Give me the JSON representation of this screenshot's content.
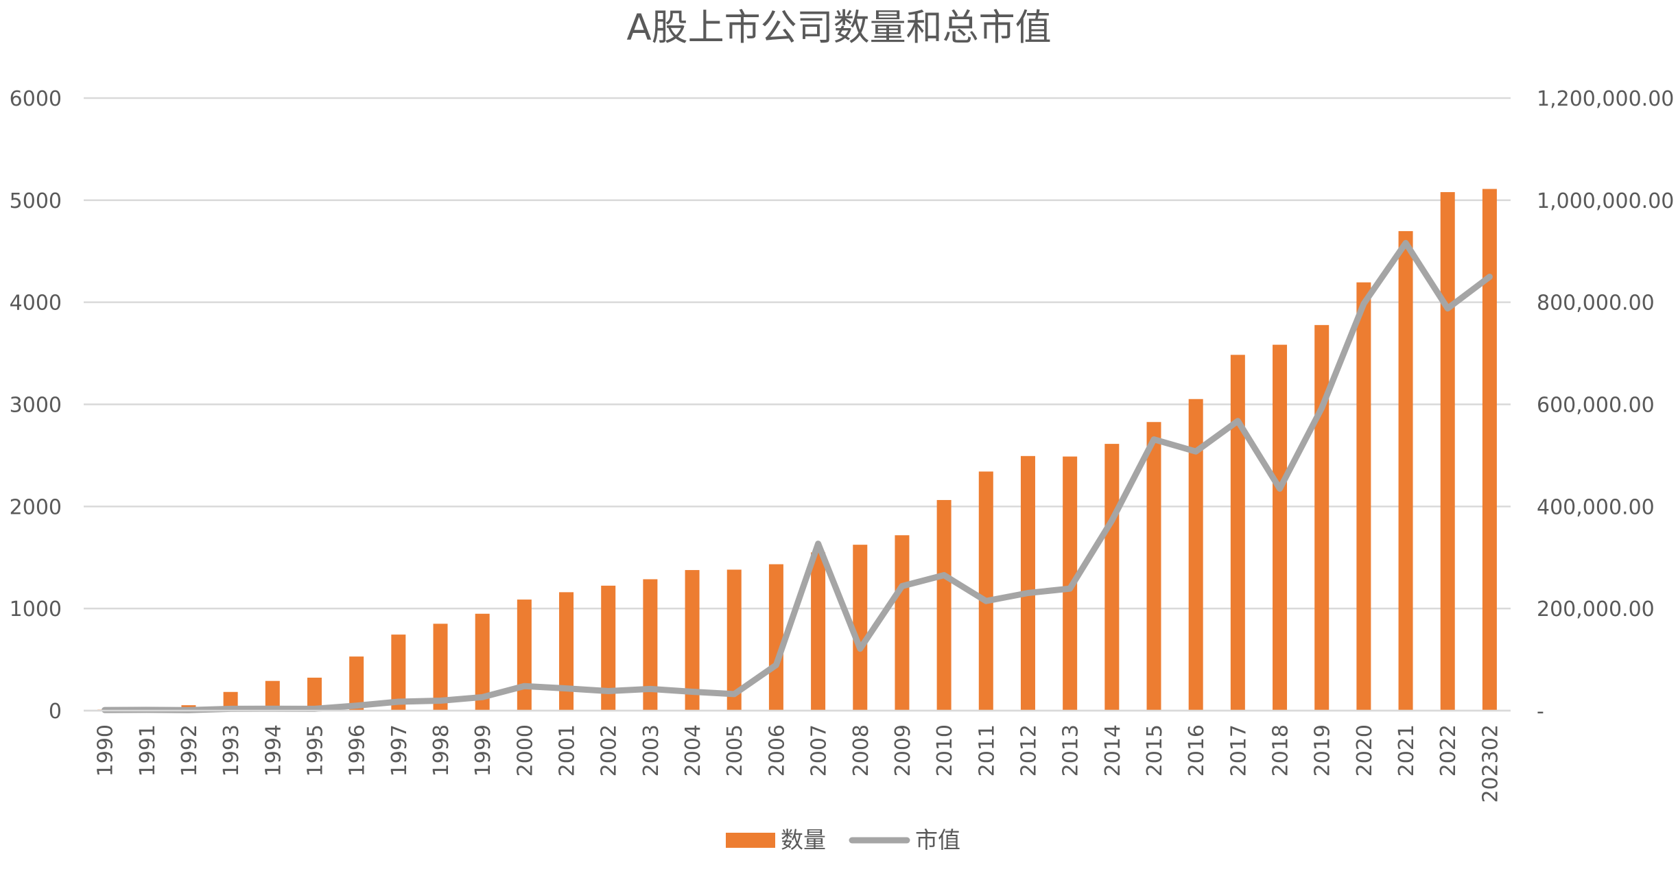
{
  "chart_data": {
    "type": "bar",
    "title": "A股上市公司数量和总市值",
    "categories": [
      "1990",
      "1991",
      "1992",
      "1993",
      "1994",
      "1995",
      "1996",
      "1997",
      "1998",
      "1999",
      "2000",
      "2001",
      "2002",
      "2003",
      "2004",
      "2005",
      "2006",
      "2007",
      "2008",
      "2009",
      "2010",
      "2011",
      "2012",
      "2013",
      "2014",
      "2015",
      "2016",
      "2017",
      "2018",
      "2019",
      "2020",
      "2021",
      "2022",
      "202302"
    ],
    "series": [
      {
        "name": "数量",
        "type": "bar",
        "axis": "left",
        "color": "#ED7D31",
        "values": [
          10,
          14,
          53,
          183,
          291,
          323,
          530,
          745,
          851,
          949,
          1088,
          1160,
          1224,
          1287,
          1377,
          1381,
          1434,
          1550,
          1625,
          1718,
          2063,
          2342,
          2494,
          2489,
          2613,
          2827,
          3052,
          3485,
          3584,
          3777,
          4195,
          4697,
          5079,
          5110
        ]
      },
      {
        "name": "市值",
        "type": "line",
        "axis": "right",
        "color": "#A5A5A5",
        "values": [
          1200,
          1500,
          1000,
          3500,
          3700,
          3500,
          9800,
          17500,
          19500,
          26500,
          48100,
          43500,
          38300,
          42500,
          37000,
          32400,
          89400,
          327100,
          121400,
          243900,
          265400,
          214800,
          230400,
          239100,
          372500,
          531300,
          507700,
          567500,
          434900,
          592900,
          797200,
          916100,
          788000,
          850000
        ]
      }
    ],
    "y_left": {
      "min": 0,
      "max": 6000,
      "ticks": [
        "0",
        "1000",
        "2000",
        "3000",
        "4000",
        "5000",
        "6000"
      ]
    },
    "y_right": {
      "min": 0,
      "max": 1200000,
      "ticks": [
        "-",
        "200,000.00",
        "400,000.00",
        "600,000.00",
        "800,000.00",
        "1,000,000.00",
        "1,200,000.00"
      ]
    },
    "grid": true,
    "legend_position": "bottom"
  }
}
